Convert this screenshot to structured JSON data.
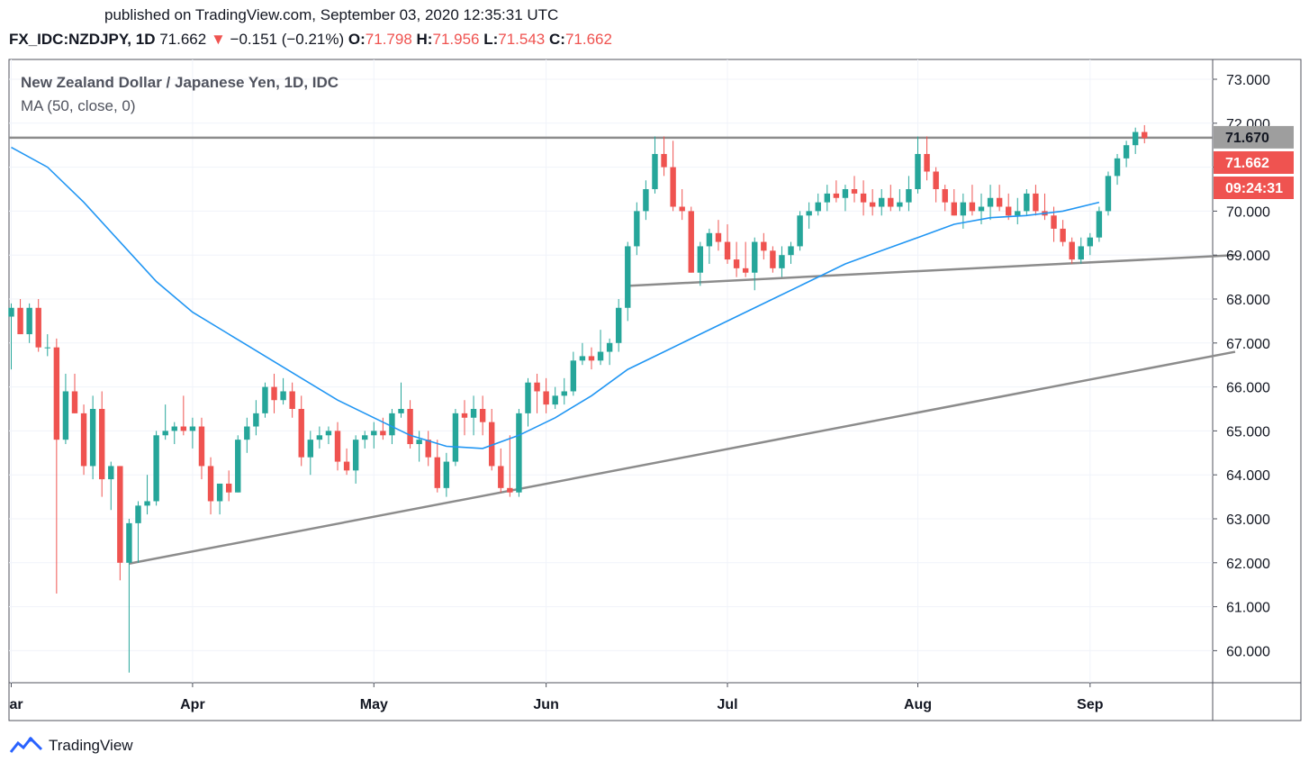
{
  "header": {
    "published": "published on TradingView.com, September 03, 2020 12:35:31 UTC",
    "symbol": "FX_IDC:NZDJPY, 1D",
    "last": "71.662",
    "arrow": "▼",
    "change": "−0.151 (−0.21%)",
    "o_label": "O:",
    "o": "71.798",
    "h_label": "H:",
    "h": "71.956",
    "l_label": "L:",
    "l": "71.543",
    "c_label": "C:",
    "c": "71.662"
  },
  "footer": {
    "brand": "TradingView"
  },
  "colors": {
    "up": "#26a69a",
    "down": "#ef5350",
    "ma": "#2196f3",
    "trendline": "#8c8c8c",
    "grid": "#f0f3fa"
  },
  "chart_data": {
    "type": "candlestick",
    "title": "New Zealand Dollar / Japanese Yen, 1D, IDC",
    "indicator": "MA (50, close, 0)",
    "ylim": [
      59.4,
      73.5
    ],
    "y_ticks": [
      "60.000",
      "61.000",
      "62.000",
      "63.000",
      "64.000",
      "65.000",
      "66.000",
      "67.000",
      "68.000",
      "69.000",
      "70.000",
      "71.000",
      "72.000",
      "73.000"
    ],
    "x_ticks": [
      {
        "label": "ar",
        "index": 0
      },
      {
        "label": "Apr",
        "index": 20
      },
      {
        "label": "May",
        "index": 40
      },
      {
        "label": "Jun",
        "index": 59
      },
      {
        "label": "Jul",
        "index": 79
      },
      {
        "label": "Aug",
        "index": 100
      },
      {
        "label": "Sep",
        "index": 119
      }
    ],
    "price_labels": [
      {
        "text": "71.670",
        "value": 71.67,
        "style": "line"
      },
      {
        "text": "71.662",
        "value": 71.662,
        "style": "down"
      },
      {
        "text": "09:24:31",
        "style": "down"
      }
    ],
    "horizontal_line": 71.67,
    "trendlines": [
      {
        "from": [
          13,
          61.98
        ],
        "to": [
          135,
          66.8
        ]
      },
      {
        "from": [
          68,
          68.3
        ],
        "to": [
          135,
          69.0
        ]
      }
    ],
    "candles": [
      [
        67.6,
        67.9,
        66.4,
        67.8
      ],
      [
        67.8,
        68.0,
        67.2,
        67.2
      ],
      [
        67.2,
        67.9,
        67.0,
        67.8
      ],
      [
        67.8,
        68.0,
        66.8,
        66.9
      ],
      [
        66.9,
        67.2,
        66.7,
        66.9
      ],
      [
        66.9,
        67.1,
        61.3,
        64.8
      ],
      [
        64.8,
        66.3,
        64.7,
        65.9
      ],
      [
        65.9,
        66.3,
        65.4,
        65.4
      ],
      [
        65.4,
        65.6,
        64.0,
        64.2
      ],
      [
        64.2,
        65.8,
        63.9,
        65.5
      ],
      [
        65.5,
        65.9,
        63.5,
        63.9
      ],
      [
        63.9,
        64.3,
        63.2,
        64.2
      ],
      [
        64.2,
        64.2,
        61.6,
        62.0
      ],
      [
        62.0,
        63.0,
        59.5,
        62.9
      ],
      [
        62.9,
        63.4,
        62.0,
        63.3
      ],
      [
        63.3,
        64.0,
        63.1,
        63.4
      ],
      [
        63.4,
        65.0,
        63.3,
        64.9
      ],
      [
        64.9,
        65.6,
        64.8,
        65.0
      ],
      [
        65.0,
        65.2,
        64.7,
        65.1
      ],
      [
        65.1,
        65.8,
        64.9,
        65.0
      ],
      [
        65.0,
        65.3,
        64.6,
        65.1
      ],
      [
        65.1,
        65.3,
        63.9,
        64.2
      ],
      [
        64.2,
        64.4,
        63.1,
        63.4
      ],
      [
        63.4,
        63.8,
        63.1,
        63.8
      ],
      [
        63.8,
        64.1,
        63.4,
        63.6
      ],
      [
        63.6,
        64.9,
        63.6,
        64.8
      ],
      [
        64.8,
        65.3,
        64.5,
        65.1
      ],
      [
        65.1,
        65.7,
        64.9,
        65.4
      ],
      [
        65.4,
        66.1,
        65.3,
        66.0
      ],
      [
        66.0,
        66.3,
        65.4,
        65.7
      ],
      [
        65.7,
        66.2,
        65.6,
        65.9
      ],
      [
        65.9,
        66.1,
        65.3,
        65.5
      ],
      [
        65.5,
        65.8,
        64.2,
        64.4
      ],
      [
        64.4,
        65.0,
        64.0,
        64.8
      ],
      [
        64.8,
        65.1,
        64.6,
        64.9
      ],
      [
        64.9,
        65.1,
        64.7,
        65.0
      ],
      [
        65.0,
        65.2,
        64.1,
        64.3
      ],
      [
        64.3,
        64.6,
        64.0,
        64.1
      ],
      [
        64.1,
        64.9,
        63.8,
        64.8
      ],
      [
        64.8,
        65.0,
        64.6,
        64.9
      ],
      [
        64.9,
        65.2,
        64.6,
        65.0
      ],
      [
        65.0,
        65.3,
        64.8,
        64.9
      ],
      [
        64.9,
        65.5,
        64.7,
        65.4
      ],
      [
        65.4,
        66.1,
        65.3,
        65.5
      ],
      [
        65.5,
        65.7,
        64.6,
        64.7
      ],
      [
        64.7,
        65.0,
        64.3,
        64.8
      ],
      [
        64.8,
        65.0,
        64.2,
        64.4
      ],
      [
        64.4,
        64.8,
        63.6,
        63.7
      ],
      [
        63.7,
        64.5,
        63.5,
        64.3
      ],
      [
        64.3,
        65.5,
        64.2,
        65.4
      ],
      [
        65.4,
        65.7,
        64.9,
        65.3
      ],
      [
        65.3,
        65.8,
        64.9,
        65.5
      ],
      [
        65.5,
        65.8,
        64.9,
        65.2
      ],
      [
        65.2,
        65.5,
        64.1,
        64.2
      ],
      [
        64.2,
        64.6,
        63.6,
        63.7
      ],
      [
        63.7,
        64.9,
        63.5,
        63.6
      ],
      [
        63.6,
        65.5,
        63.5,
        65.4
      ],
      [
        65.4,
        66.2,
        65.1,
        66.1
      ],
      [
        66.1,
        66.3,
        65.4,
        65.9
      ],
      [
        65.9,
        66.2,
        65.4,
        65.6
      ],
      [
        65.6,
        66.0,
        65.5,
        65.8
      ],
      [
        65.8,
        66.2,
        65.6,
        65.9
      ],
      [
        65.9,
        66.8,
        65.8,
        66.6
      ],
      [
        66.6,
        67.0,
        66.5,
        66.7
      ],
      [
        66.7,
        66.9,
        66.4,
        66.6
      ],
      [
        66.6,
        67.3,
        66.5,
        66.8
      ],
      [
        66.8,
        67.1,
        66.5,
        67.0
      ],
      [
        67.0,
        68.0,
        66.8,
        67.8
      ],
      [
        67.8,
        69.3,
        67.5,
        69.2
      ],
      [
        69.2,
        70.2,
        69.0,
        70.0
      ],
      [
        70.0,
        70.7,
        69.8,
        70.5
      ],
      [
        70.5,
        71.7,
        70.4,
        71.3
      ],
      [
        71.3,
        71.7,
        70.8,
        71.0
      ],
      [
        71.0,
        71.6,
        70.0,
        70.1
      ],
      [
        70.1,
        70.5,
        69.8,
        70.0
      ],
      [
        70.0,
        70.1,
        68.6,
        68.6
      ],
      [
        68.6,
        69.3,
        68.3,
        69.2
      ],
      [
        69.2,
        69.6,
        68.8,
        69.5
      ],
      [
        69.5,
        69.8,
        69.1,
        69.3
      ],
      [
        69.3,
        69.7,
        68.8,
        68.9
      ],
      [
        68.9,
        69.3,
        68.5,
        68.7
      ],
      [
        68.7,
        69.3,
        68.5,
        68.6
      ],
      [
        68.6,
        69.4,
        68.2,
        69.3
      ],
      [
        69.3,
        69.5,
        68.9,
        69.1
      ],
      [
        69.1,
        69.2,
        68.6,
        68.7
      ],
      [
        68.7,
        69.2,
        68.5,
        69.0
      ],
      [
        69.0,
        69.3,
        68.8,
        69.2
      ],
      [
        69.2,
        70.0,
        69.1,
        69.9
      ],
      [
        69.9,
        70.2,
        69.6,
        70.0
      ],
      [
        70.0,
        70.4,
        69.9,
        70.2
      ],
      [
        70.2,
        70.6,
        70.0,
        70.4
      ],
      [
        70.4,
        70.7,
        70.2,
        70.3
      ],
      [
        70.3,
        70.6,
        70.0,
        70.5
      ],
      [
        70.5,
        70.8,
        70.2,
        70.4
      ],
      [
        70.4,
        70.7,
        69.9,
        70.2
      ],
      [
        70.2,
        70.5,
        69.9,
        70.1
      ],
      [
        70.1,
        70.5,
        69.9,
        70.3
      ],
      [
        70.3,
        70.6,
        70.0,
        70.1
      ],
      [
        70.1,
        70.5,
        70.0,
        70.2
      ],
      [
        70.2,
        70.8,
        70.0,
        70.5
      ],
      [
        70.5,
        71.7,
        70.4,
        71.3
      ],
      [
        71.3,
        71.7,
        70.7,
        70.9
      ],
      [
        70.9,
        71.0,
        70.2,
        70.5
      ],
      [
        70.5,
        70.6,
        70.0,
        70.2
      ],
      [
        70.2,
        70.5,
        69.9,
        69.9
      ],
      [
        69.9,
        70.4,
        69.6,
        70.2
      ],
      [
        70.2,
        70.6,
        69.9,
        70.0
      ],
      [
        70.0,
        70.4,
        69.7,
        70.1
      ],
      [
        70.1,
        70.6,
        69.8,
        70.3
      ],
      [
        70.3,
        70.6,
        70.0,
        70.1
      ],
      [
        70.1,
        70.4,
        69.8,
        69.9
      ],
      [
        69.9,
        70.3,
        69.7,
        70.0
      ],
      [
        70.0,
        70.5,
        69.9,
        70.4
      ],
      [
        70.4,
        70.6,
        69.9,
        70.0
      ],
      [
        70.0,
        70.4,
        69.8,
        69.9
      ],
      [
        69.9,
        70.1,
        69.3,
        69.6
      ],
      [
        69.6,
        69.8,
        69.2,
        69.3
      ],
      [
        69.3,
        69.4,
        68.8,
        68.9
      ],
      [
        68.9,
        69.4,
        68.8,
        69.2
      ],
      [
        69.2,
        69.5,
        69.0,
        69.4
      ],
      [
        69.4,
        70.1,
        69.3,
        70.0
      ],
      [
        70.0,
        70.9,
        69.9,
        70.8
      ],
      [
        70.8,
        71.3,
        70.6,
        71.2
      ],
      [
        71.2,
        71.6,
        71.0,
        71.5
      ],
      [
        71.5,
        71.9,
        71.3,
        71.8
      ],
      [
        71.8,
        71.956,
        71.543,
        71.662
      ]
    ],
    "ma50": [
      [
        0,
        71.45
      ],
      [
        4,
        71.0
      ],
      [
        8,
        70.2
      ],
      [
        12,
        69.3
      ],
      [
        16,
        68.4
      ],
      [
        20,
        67.7
      ],
      [
        24,
        67.2
      ],
      [
        28,
        66.7
      ],
      [
        32,
        66.2
      ],
      [
        36,
        65.7
      ],
      [
        40,
        65.3
      ],
      [
        44,
        64.9
      ],
      [
        48,
        64.65
      ],
      [
        52,
        64.6
      ],
      [
        56,
        64.9
      ],
      [
        60,
        65.3
      ],
      [
        64,
        65.8
      ],
      [
        68,
        66.4
      ],
      [
        72,
        66.8
      ],
      [
        76,
        67.2
      ],
      [
        80,
        67.6
      ],
      [
        84,
        68.0
      ],
      [
        88,
        68.4
      ],
      [
        92,
        68.8
      ],
      [
        96,
        69.1
      ],
      [
        100,
        69.4
      ],
      [
        104,
        69.7
      ],
      [
        108,
        69.85
      ],
      [
        112,
        69.9
      ],
      [
        116,
        70.0
      ],
      [
        120,
        70.2
      ]
    ]
  }
}
